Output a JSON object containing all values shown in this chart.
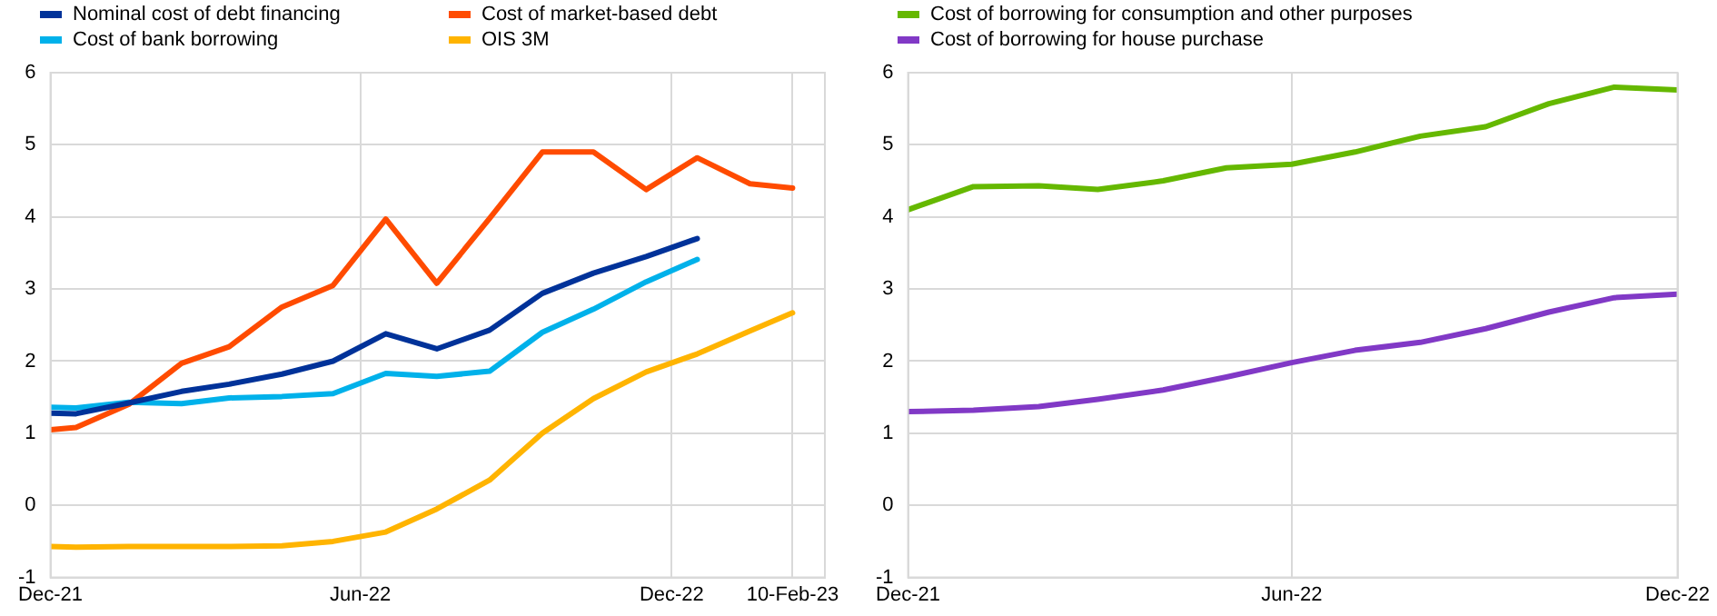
{
  "chart_data": [
    {
      "type": "line",
      "x": [
        "2021-12-01",
        "2021-12-16",
        "2022-01-16",
        "2022-02-16",
        "2022-03-16",
        "2022-04-16",
        "2022-05-16",
        "2022-06-16",
        "2022-07-16",
        "2022-08-16",
        "2022-09-16",
        "2022-10-16",
        "2022-11-16",
        "2022-12-16",
        "2023-01-16",
        "2023-02-10"
      ],
      "series": [
        {
          "name": "Nominal cost of debt financing",
          "color": "#003299",
          "values": [
            1.28,
            1.27,
            1.42,
            1.58,
            1.68,
            1.82,
            2.0,
            2.38,
            2.17,
            2.43,
            2.94,
            3.22,
            3.45,
            3.7,
            null,
            null
          ]
        },
        {
          "name": "Cost of market-based debt",
          "color": "#ff4b00",
          "values": [
            1.05,
            1.08,
            1.4,
            1.97,
            2.2,
            2.75,
            3.05,
            3.97,
            3.08,
            3.98,
            4.9,
            4.9,
            4.38,
            4.82,
            4.46,
            4.4
          ]
        },
        {
          "name": "Cost of bank borrowing",
          "color": "#00b1ea",
          "values": [
            1.36,
            1.35,
            1.43,
            1.41,
            1.49,
            1.51,
            1.55,
            1.83,
            1.79,
            1.86,
            2.4,
            2.72,
            3.1,
            3.41,
            null,
            null
          ]
        },
        {
          "name": "OIS 3M",
          "color": "#ffb400",
          "values": [
            -0.57,
            -0.58,
            -0.57,
            -0.57,
            -0.57,
            -0.56,
            -0.5,
            -0.37,
            -0.05,
            0.35,
            1.0,
            1.48,
            1.85,
            2.1,
            2.42,
            2.67
          ]
        }
      ],
      "xlim": [
        "2021-12-01",
        "2023-03-01"
      ],
      "xticks": [
        {
          "value": "2021-12-01",
          "label": "Dec-21"
        },
        {
          "value": "2022-06-01",
          "label": "Jun-22"
        },
        {
          "value": "2022-12-01",
          "label": "Dec-22"
        },
        {
          "value": "2023-02-10",
          "label": "10-Feb-23"
        }
      ],
      "ylim": [
        -1,
        6
      ],
      "yticks": [
        -1,
        0,
        1,
        2,
        3,
        4,
        5,
        6
      ],
      "grid": true,
      "legend": "top",
      "marker": "none",
      "line_style": "solid"
    },
    {
      "type": "line",
      "x": [
        "2021-12",
        "2022-01",
        "2022-02",
        "2022-03",
        "2022-04",
        "2022-05",
        "2022-06",
        "2022-07",
        "2022-08",
        "2022-09",
        "2022-10",
        "2022-11",
        "2022-12"
      ],
      "series": [
        {
          "name": "Cost of borrowing for consumption and other purposes",
          "color": "#65b800",
          "values": [
            4.1,
            4.42,
            4.43,
            4.38,
            4.5,
            4.68,
            4.73,
            4.9,
            5.12,
            5.25,
            5.57,
            5.8,
            5.76
          ]
        },
        {
          "name": "Cost of borrowing for house purchase",
          "color": "#8139c6",
          "values": [
            1.3,
            1.32,
            1.37,
            1.47,
            1.6,
            1.78,
            1.98,
            2.15,
            2.26,
            2.45,
            2.68,
            2.88,
            2.93
          ]
        }
      ],
      "xlim": [
        "2021-12",
        "2022-12"
      ],
      "xticks": [
        {
          "value": "2021-12",
          "label": "Dec-21"
        },
        {
          "value": "2022-06",
          "label": "Jun-22"
        },
        {
          "value": "2022-12",
          "label": "Dec-22"
        }
      ],
      "ylim": [
        -1,
        6
      ],
      "yticks": [
        -1,
        0,
        1,
        2,
        3,
        4,
        5,
        6
      ],
      "grid": true,
      "legend": "top",
      "marker": "none",
      "line_style": "solid"
    }
  ]
}
